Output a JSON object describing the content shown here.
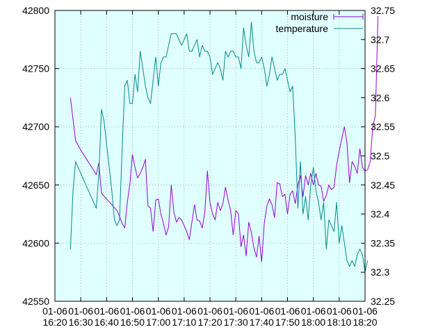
{
  "chart_data": {
    "type": "line",
    "grid": true,
    "legend_position": "top-right",
    "background_color": "#e0ffff",
    "x_ticks": [
      {
        "top": "01-06",
        "bottom": "16:20"
      },
      {
        "top": "01-06",
        "bottom": "16:30"
      },
      {
        "top": "01-06",
        "bottom": "16:40"
      },
      {
        "top": "01-06",
        "bottom": "16:50"
      },
      {
        "top": "01-06",
        "bottom": "17:00"
      },
      {
        "top": "01-06",
        "bottom": "17:10"
      },
      {
        "top": "01-06",
        "bottom": "17:20"
      },
      {
        "top": "01-06",
        "bottom": "17:30"
      },
      {
        "top": "01-06",
        "bottom": "17:40"
      },
      {
        "top": "01-06",
        "bottom": "17:50"
      },
      {
        "top": "01-06",
        "bottom": "18:00"
      },
      {
        "top": "01-06",
        "bottom": "18:10"
      },
      {
        "top": "01-06",
        "bottom": "18:20"
      }
    ],
    "xlim": [
      "16:20",
      "18:20"
    ],
    "y_left": {
      "lim": [
        42550,
        42800
      ],
      "ticks": [
        "42550",
        "42600",
        "42650",
        "42700",
        "42750",
        "42800"
      ]
    },
    "y_right": {
      "lim": [
        32.25,
        32.75
      ],
      "ticks": [
        "32.25",
        "32.3",
        "32.35",
        "32.4",
        "32.45",
        "32.5",
        "32.55",
        "32.6",
        "32.65",
        "32.7",
        "32.75"
      ]
    },
    "series": [
      {
        "name": "moisture",
        "axis": "left",
        "color": "#9400d3",
        "points": [
          [
            "16:26",
            42725
          ],
          [
            "16:28",
            42688
          ],
          [
            "16:30",
            42680
          ],
          [
            "16:32",
            42673
          ],
          [
            "16:34",
            42666
          ],
          [
            "16:36",
            42659
          ],
          [
            "16:37",
            42669
          ],
          [
            "16:38",
            42643
          ],
          [
            "16:40",
            42638
          ],
          [
            "16:42",
            42633
          ],
          [
            "16:44",
            42628
          ],
          [
            "16:45",
            42623
          ],
          [
            "16:46",
            42617
          ],
          [
            "16:47",
            42613
          ],
          [
            "16:48",
            42635
          ],
          [
            "16:49",
            42651
          ],
          [
            "16:50",
            42676
          ],
          [
            "16:51",
            42665
          ],
          [
            "16:52",
            42656
          ],
          [
            "16:53",
            42660
          ],
          [
            "16:54",
            42665
          ],
          [
            "16:55",
            42672
          ],
          [
            "16:56",
            42632
          ],
          [
            "16:57",
            42630
          ],
          [
            "16:58",
            42610
          ],
          [
            "16:59",
            42637
          ],
          [
            "17:00",
            42638
          ],
          [
            "17:01",
            42625
          ],
          [
            "17:02",
            42617
          ],
          [
            "17:03",
            42607
          ],
          [
            "17:04",
            42614
          ],
          [
            "17:05",
            42650
          ],
          [
            "17:06",
            42627
          ],
          [
            "17:07",
            42618
          ],
          [
            "17:08",
            42622
          ],
          [
            "17:09",
            42620
          ],
          [
            "17:10",
            42615
          ],
          [
            "17:11",
            42610
          ],
          [
            "17:12",
            42603
          ],
          [
            "17:13",
            42618
          ],
          [
            "17:14",
            42633
          ],
          [
            "17:15",
            42620
          ],
          [
            "17:16",
            42619
          ],
          [
            "17:17",
            42613
          ],
          [
            "17:18",
            42627
          ],
          [
            "17:19",
            42662
          ],
          [
            "17:20",
            42635
          ],
          [
            "17:21",
            42625
          ],
          [
            "17:22",
            42620
          ],
          [
            "17:23",
            42635
          ],
          [
            "17:24",
            42628
          ],
          [
            "17:25",
            42634
          ],
          [
            "17:26",
            42648
          ],
          [
            "17:27",
            42637
          ],
          [
            "17:28",
            42628
          ],
          [
            "17:29",
            42607
          ],
          [
            "17:30",
            42628
          ],
          [
            "17:31",
            42625
          ],
          [
            "17:32",
            42597
          ],
          [
            "17:33",
            42607
          ],
          [
            "17:34",
            42589
          ],
          [
            "17:35",
            42618
          ],
          [
            "17:36",
            42609
          ],
          [
            "17:37",
            42596
          ],
          [
            "17:38",
            42588
          ],
          [
            "17:39",
            42606
          ],
          [
            "17:40",
            42584
          ],
          [
            "17:41",
            42617
          ],
          [
            "17:42",
            42632
          ],
          [
            "17:43",
            42638
          ],
          [
            "17:44",
            42633
          ],
          [
            "17:45",
            42622
          ],
          [
            "17:46",
            42652
          ],
          [
            "17:47",
            42651
          ],
          [
            "17:48",
            42640
          ],
          [
            "17:49",
            42642
          ],
          [
            "17:50",
            42625
          ],
          [
            "17:51",
            42642
          ],
          [
            "17:52",
            42645
          ],
          [
            "17:53",
            42634
          ],
          [
            "17:54",
            42650
          ],
          [
            "17:55",
            42658
          ],
          [
            "17:56",
            42640
          ],
          [
            "17:57",
            42658
          ],
          [
            "17:58",
            42650
          ],
          [
            "17:59",
            42660
          ],
          [
            "18:00",
            42650
          ],
          [
            "18:01",
            42660
          ],
          [
            "18:02",
            42650
          ],
          [
            "18:03",
            42649
          ],
          [
            "18:04",
            42636
          ],
          [
            "18:05",
            42641
          ],
          [
            "18:06",
            42650
          ],
          [
            "18:07",
            42646
          ],
          [
            "18:08",
            42648
          ],
          [
            "18:09",
            42667
          ],
          [
            "18:10",
            42679
          ],
          [
            "18:11",
            42690
          ],
          [
            "18:12",
            42700
          ],
          [
            "18:13",
            42686
          ],
          [
            "18:14",
            42652
          ],
          [
            "18:15",
            42670
          ],
          [
            "18:16",
            42666
          ],
          [
            "18:17",
            42660
          ],
          [
            "18:18",
            42681
          ],
          [
            "18:19",
            42665
          ],
          [
            "18:20",
            42662
          ],
          [
            "18:21",
            42663
          ],
          [
            "18:22",
            42670
          ],
          [
            "18:23",
            42700
          ],
          [
            "18:24",
            42710
          ],
          [
            "18:25",
            42795
          ]
        ]
      },
      {
        "name": "temperature",
        "axis": "right",
        "color": "#008b8b",
        "points": [
          [
            "16:26",
            32.34
          ],
          [
            "16:27",
            32.44
          ],
          [
            "16:28",
            32.49
          ],
          [
            "16:30",
            32.47
          ],
          [
            "16:32",
            32.45
          ],
          [
            "16:34",
            32.43
          ],
          [
            "16:36",
            32.41
          ],
          [
            "16:37",
            32.47
          ],
          [
            "16:38",
            32.58
          ],
          [
            "16:39",
            32.56
          ],
          [
            "16:40",
            32.52
          ],
          [
            "16:41",
            32.48
          ],
          [
            "16:42",
            32.44
          ],
          [
            "16:43",
            32.39
          ],
          [
            "16:44",
            32.38
          ],
          [
            "16:45",
            32.39
          ],
          [
            "16:46",
            32.51
          ],
          [
            "16:47",
            32.62
          ],
          [
            "16:48",
            32.63
          ],
          [
            "16:49",
            32.59
          ],
          [
            "16:50",
            32.59
          ],
          [
            "16:51",
            32.64
          ],
          [
            "16:52",
            32.61
          ],
          [
            "16:53",
            32.68
          ],
          [
            "16:54",
            32.65
          ],
          [
            "16:55",
            32.62
          ],
          [
            "16:56",
            32.6
          ],
          [
            "16:57",
            32.59
          ],
          [
            "16:58",
            32.63
          ],
          [
            "16:59",
            32.67
          ],
          [
            "17:00",
            32.62
          ],
          [
            "17:01",
            32.66
          ],
          [
            "17:02",
            32.67
          ],
          [
            "17:03",
            32.67
          ],
          [
            "17:04",
            32.69
          ],
          [
            "17:05",
            32.71
          ],
          [
            "17:06",
            32.71
          ],
          [
            "17:07",
            32.71
          ],
          [
            "17:08",
            32.7
          ],
          [
            "17:09",
            32.69
          ],
          [
            "17:10",
            32.7
          ],
          [
            "17:11",
            32.71
          ],
          [
            "17:12",
            32.68
          ],
          [
            "17:13",
            32.68
          ],
          [
            "17:14",
            32.69
          ],
          [
            "17:15",
            32.7
          ],
          [
            "17:16",
            32.67
          ],
          [
            "17:17",
            32.69
          ],
          [
            "17:18",
            32.68
          ],
          [
            "17:19",
            32.68
          ],
          [
            "17:20",
            32.67
          ],
          [
            "17:21",
            32.64
          ],
          [
            "17:22",
            32.65
          ],
          [
            "17:23",
            32.66
          ],
          [
            "17:24",
            32.65
          ],
          [
            "17:25",
            32.63
          ],
          [
            "17:26",
            32.68
          ],
          [
            "17:27",
            32.67
          ],
          [
            "17:28",
            32.68
          ],
          [
            "17:29",
            32.68
          ],
          [
            "17:30",
            32.67
          ],
          [
            "17:31",
            32.67
          ],
          [
            "17:32",
            32.65
          ],
          [
            "17:33",
            32.72
          ],
          [
            "17:34",
            32.69
          ],
          [
            "17:35",
            32.67
          ],
          [
            "17:36",
            32.73
          ],
          [
            "17:37",
            32.68
          ],
          [
            "17:38",
            32.66
          ],
          [
            "17:39",
            32.66
          ],
          [
            "17:40",
            32.67
          ],
          [
            "17:41",
            32.65
          ],
          [
            "17:42",
            32.62
          ],
          [
            "17:43",
            32.64
          ],
          [
            "17:44",
            32.67
          ],
          [
            "17:45",
            32.65
          ],
          [
            "17:46",
            32.63
          ],
          [
            "17:47",
            32.64
          ],
          [
            "17:48",
            32.64
          ],
          [
            "17:49",
            32.65
          ],
          [
            "17:50",
            32.63
          ],
          [
            "17:51",
            32.61
          ],
          [
            "17:52",
            32.62
          ],
          [
            "17:53",
            32.53
          ],
          [
            "17:54",
            32.41
          ],
          [
            "17:55",
            32.49
          ],
          [
            "17:56",
            32.4
          ],
          [
            "17:57",
            32.43
          ],
          [
            "17:58",
            32.39
          ],
          [
            "17:59",
            32.45
          ],
          [
            "18:00",
            32.48
          ],
          [
            "18:01",
            32.44
          ],
          [
            "18:02",
            32.42
          ],
          [
            "18:03",
            32.39
          ],
          [
            "18:04",
            32.42
          ],
          [
            "18:05",
            32.34
          ],
          [
            "18:06",
            32.39
          ],
          [
            "18:07",
            32.38
          ],
          [
            "18:08",
            32.37
          ],
          [
            "18:09",
            32.42
          ],
          [
            "18:10",
            32.35
          ],
          [
            "18:11",
            32.38
          ],
          [
            "18:12",
            32.35
          ],
          [
            "18:13",
            32.32
          ],
          [
            "18:14",
            32.31
          ],
          [
            "18:15",
            32.32
          ],
          [
            "18:16",
            32.31
          ],
          [
            "18:17",
            32.33
          ],
          [
            "18:18",
            32.34
          ],
          [
            "18:19",
            32.33
          ],
          [
            "18:20",
            32.3
          ],
          [
            "18:21",
            32.32
          ]
        ]
      }
    ]
  }
}
